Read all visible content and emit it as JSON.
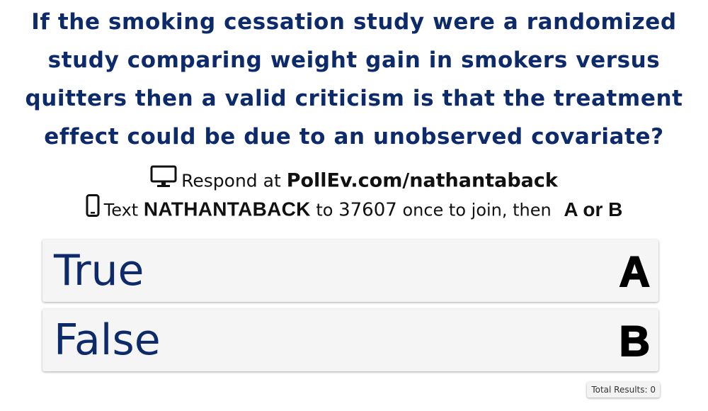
{
  "question": {
    "lines": [
      "If the smoking cessation study were a randomized",
      "study comparing weight gain in smokers versus",
      "quitters then a valid criticism is that the treatment",
      "effect could be due to an unobserved covariate?"
    ]
  },
  "instructions": {
    "web_icon": "monitor-icon",
    "respond_prefix": "Respond at",
    "respond_url": "PollEv.com/nathantaback",
    "text_icon": "phone-icon",
    "text_prefix": "Text",
    "keyword": "NATHANTABACK",
    "to": "to",
    "number": "37607",
    "join_text": "once to join, then",
    "choices": "A or B"
  },
  "options": [
    {
      "label": "True",
      "key": "A"
    },
    {
      "label": "False",
      "key": "B"
    }
  ],
  "footer": {
    "total_results": "Total Results: 0"
  },
  "colors": {
    "question_text": "#0d2a6b",
    "option_bg": "#f5f5f5"
  }
}
